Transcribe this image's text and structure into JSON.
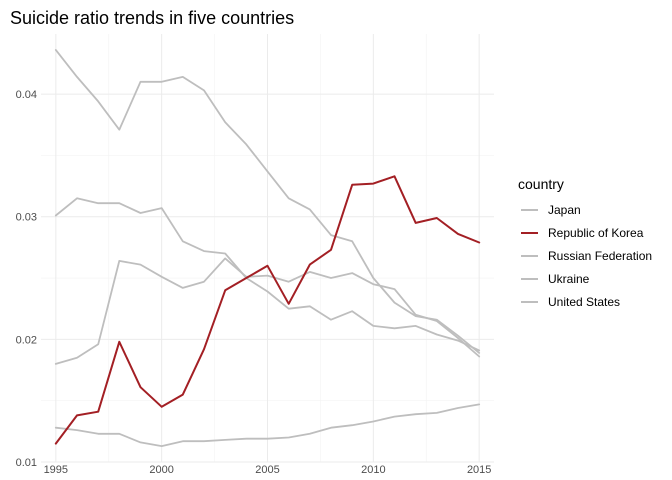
{
  "chart_data": {
    "type": "line",
    "title": "Suicide ratio trends in five countries",
    "xlabel": "",
    "ylabel": "",
    "xlim": [
      1994.3,
      2015.7
    ],
    "ylim": [
      0.01,
      0.0449
    ],
    "x_ticks": [
      1995,
      2000,
      2005,
      2010,
      2015
    ],
    "y_ticks": [
      0.01,
      0.02,
      0.03,
      0.04
    ],
    "y_tick_labels": [
      "0.01",
      "0.02",
      "0.03",
      "0.04"
    ],
    "grid": true,
    "legend": {
      "title": "country",
      "position": "right"
    },
    "x": [
      1995,
      1996,
      1997,
      1998,
      1999,
      2000,
      2001,
      2002,
      2003,
      2004,
      2005,
      2006,
      2007,
      2008,
      2009,
      2010,
      2011,
      2012,
      2013,
      2014,
      2015
    ],
    "series": [
      {
        "name": "Japan",
        "color": "#bebebe",
        "values": [
          0.018,
          0.0185,
          0.0196,
          0.0264,
          0.0261,
          0.0251,
          0.0242,
          0.0247,
          0.0266,
          0.0251,
          0.0252,
          0.0247,
          0.0255,
          0.025,
          0.0254,
          0.0245,
          0.0241,
          0.022,
          0.0215,
          0.0201,
          0.0186
        ]
      },
      {
        "name": "Republic of Korea",
        "color": "#a31f24",
        "values": [
          0.0115,
          0.0138,
          0.0141,
          0.0198,
          0.0161,
          0.0145,
          0.0155,
          0.0192,
          0.024,
          0.025,
          0.026,
          0.0229,
          0.0261,
          0.0273,
          0.0326,
          0.0327,
          0.0333,
          0.0295,
          0.0299,
          0.0286,
          0.0279
        ]
      },
      {
        "name": "Russian Federation",
        "color": "#bebebe",
        "values": [
          0.0436,
          0.0414,
          0.0394,
          0.0371,
          0.041,
          0.041,
          0.0414,
          0.0403,
          0.0377,
          0.0359,
          0.0337,
          0.0315,
          0.0306,
          0.0285,
          0.028,
          0.025,
          0.023,
          0.0219,
          0.0216,
          0.0203,
          0.0189
        ]
      },
      {
        "name": "Ukraine",
        "color": "#bebebe",
        "values": [
          0.0301,
          0.0315,
          0.0311,
          0.0311,
          0.0303,
          0.0307,
          0.028,
          0.0272,
          0.027,
          0.025,
          0.0239,
          0.0225,
          0.0227,
          0.0216,
          0.0223,
          0.0211,
          0.0209,
          0.0211,
          0.0204,
          0.0199,
          0.0191
        ]
      },
      {
        "name": "United States",
        "color": "#bebebe",
        "values": [
          0.0128,
          0.0126,
          0.0123,
          0.0123,
          0.0116,
          0.0113,
          0.0117,
          0.0117,
          0.0118,
          0.0119,
          0.0119,
          0.012,
          0.0123,
          0.0128,
          0.013,
          0.0133,
          0.0137,
          0.0139,
          0.014,
          0.0144,
          0.0147
        ]
      }
    ]
  }
}
